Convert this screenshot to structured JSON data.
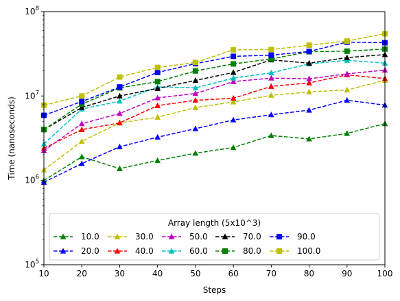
{
  "chart_data": {
    "type": "line",
    "title": "",
    "xlabel": "Steps",
    "ylabel": "Time (nanoseconds)",
    "x": [
      10,
      20,
      30,
      40,
      50,
      60,
      70,
      80,
      90,
      100
    ],
    "xlim": [
      10,
      100
    ],
    "ylim": [
      100000,
      100000000
    ],
    "yscale": "log",
    "grid": false,
    "x_ticks": [
      {
        "value": 10,
        "label": "10"
      },
      {
        "value": 20,
        "label": "20"
      },
      {
        "value": 30,
        "label": "30"
      },
      {
        "value": 40,
        "label": "40"
      },
      {
        "value": 50,
        "label": "50"
      },
      {
        "value": 60,
        "label": "60"
      },
      {
        "value": 70,
        "label": "70"
      },
      {
        "value": 80,
        "label": "80"
      },
      {
        "value": 90,
        "label": "90"
      },
      {
        "value": 100,
        "label": "100"
      }
    ],
    "y_ticks": [
      {
        "value": 100000,
        "base": "10",
        "exp": "5"
      },
      {
        "value": 1000000,
        "base": "10",
        "exp": "6"
      },
      {
        "value": 10000000,
        "base": "10",
        "exp": "7"
      },
      {
        "value": 100000000,
        "base": "10",
        "exp": "8"
      }
    ],
    "legend": {
      "title": "Array length (5x10^3)",
      "position": "lower-center",
      "columns": 5
    },
    "series": [
      {
        "name": "10.0",
        "color": "#008000",
        "marker": "triangle",
        "values": [
          1000000,
          1900000,
          1380000,
          1720000,
          2100000,
          2450000,
          3400000,
          3100000,
          3600000,
          4700000
        ]
      },
      {
        "name": "20.0",
        "color": "#0000ff",
        "marker": "triangle",
        "values": [
          950000,
          1580000,
          2500000,
          3250000,
          4100000,
          5200000,
          6000000,
          6800000,
          8900000,
          7800000
        ]
      },
      {
        "name": "30.0",
        "color": "#bfbf00",
        "marker": "triangle",
        "values": [
          1330000,
          2900000,
          4800000,
          5600000,
          7300000,
          8500000,
          10200000,
          11200000,
          11800000,
          15300000
        ]
      },
      {
        "name": "40.0",
        "color": "#ff0000",
        "marker": "triangle",
        "values": [
          2400000,
          4000000,
          4800000,
          7700000,
          8900000,
          9400000,
          13000000,
          14300000,
          17800000,
          16100000
        ]
      },
      {
        "name": "50.0",
        "color": "#bf00bf",
        "marker": "triangle",
        "values": [
          2250000,
          4700000,
          6200000,
          9500000,
          10700000,
          14800000,
          16300000,
          16000000,
          18300000,
          20300000
        ]
      },
      {
        "name": "60.0",
        "color": "#00bfbf",
        "marker": "triangle",
        "values": [
          2700000,
          7000000,
          8700000,
          12800000,
          12500000,
          16300000,
          18800000,
          24000000,
          26500000,
          24500000
        ]
      },
      {
        "name": "70.0",
        "color": "#000000",
        "marker": "triangle",
        "values": [
          4000000,
          7300000,
          10000000,
          12300000,
          15300000,
          19000000,
          26800000,
          24500000,
          28500000,
          31000000
        ]
      },
      {
        "name": "80.0",
        "color": "#008000",
        "marker": "square",
        "values": [
          4000000,
          8000000,
          12500000,
          14800000,
          19800000,
          24000000,
          27500000,
          33500000,
          34000000,
          36000000
        ]
      },
      {
        "name": "90.0",
        "color": "#0000ff",
        "marker": "square",
        "values": [
          5900000,
          8600000,
          12800000,
          19000000,
          24200000,
          29500000,
          30500000,
          33700000,
          43500000,
          42800000
        ]
      },
      {
        "name": "100.0",
        "color": "#bfbf00",
        "marker": "square",
        "values": [
          7800000,
          10000000,
          16800000,
          21800000,
          25000000,
          35300000,
          35500000,
          40000000,
          44800000,
          54700000
        ]
      }
    ]
  }
}
